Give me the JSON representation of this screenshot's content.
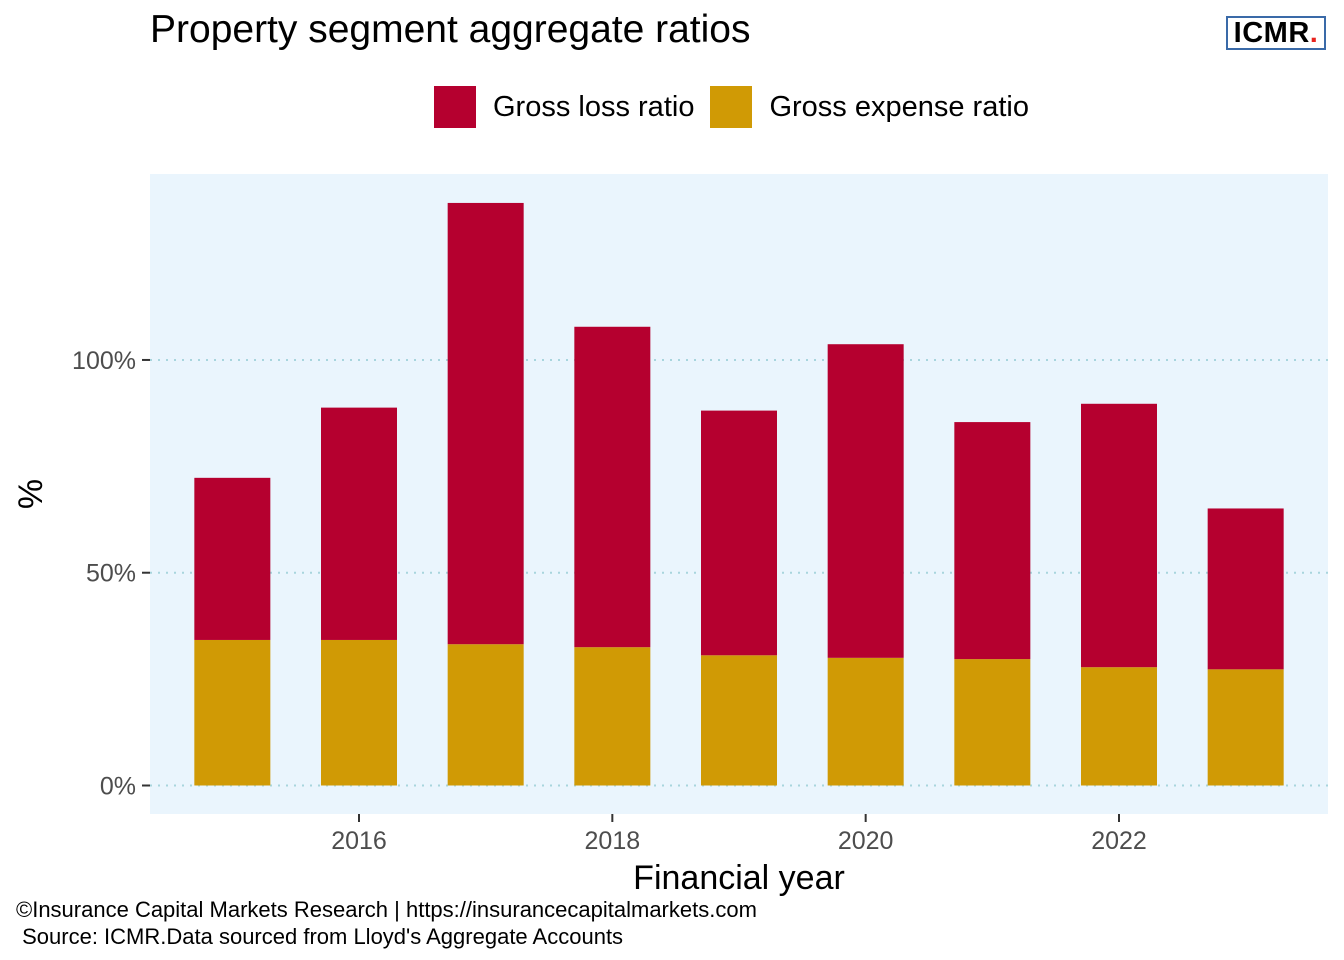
{
  "header": {
    "title": "Property segment aggregate ratios",
    "logo_text": "ICMR",
    "logo_dot": "."
  },
  "legend": {
    "items": [
      {
        "label": "Gross loss ratio",
        "color": "#b5002f"
      },
      {
        "label": "Gross expense ratio",
        "color": "#d09a05"
      }
    ]
  },
  "footer": {
    "line1": "©Insurance Capital Markets Research | https://insurancecapitalmarkets.com",
    "line2": " Source: ICMR.Data sourced from Lloyd's Aggregate Accounts"
  },
  "chart_data": {
    "type": "bar",
    "stacked": true,
    "x": [
      2015,
      2016,
      2017,
      2018,
      2019,
      2020,
      2021,
      2022,
      2023
    ],
    "series": [
      {
        "name": "Gross expense ratio",
        "color": "#d09a05",
        "values": [
          34.2,
          34.2,
          33.2,
          32.5,
          30.6,
          30.0,
          29.7,
          27.8,
          27.3
        ]
      },
      {
        "name": "Gross loss ratio",
        "color": "#b5002f",
        "values": [
          38.1,
          54.6,
          103.7,
          75.3,
          57.5,
          73.7,
          55.7,
          61.9,
          37.8
        ]
      }
    ],
    "xlabel": "Financial year",
    "ylabel": "%",
    "x_ticks": [
      "2016",
      "2018",
      "2020",
      "2022"
    ],
    "y_ticks": [
      "0%",
      "50%",
      "100%"
    ],
    "y_tick_values": [
      0,
      50,
      100
    ],
    "ylim": [
      -6.7,
      143.7
    ],
    "xlim": [
      2014.35,
      2023.65
    ],
    "grid": "horizontal dotted",
    "legend_position": "top",
    "panel_color": "#eaf5fd",
    "grid_color": "#a8d5dd"
  }
}
